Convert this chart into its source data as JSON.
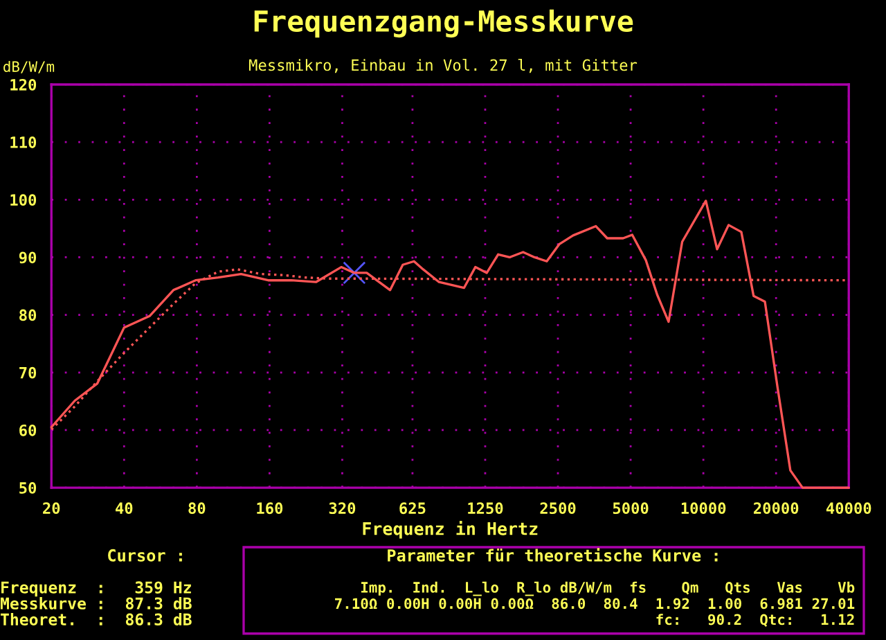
{
  "chart_data": {
    "type": "line",
    "title": "Frequenzgang-Messkurve",
    "subtitle": "Messmikro, Einbau in Vol. 27 l, mit Gitter",
    "xlabel": "Frequenz in Hertz",
    "ylabel": "dB/W/m",
    "log": "x",
    "xlim": [
      20,
      40000
    ],
    "xticks": [
      20,
      40,
      80,
      160,
      320,
      625,
      1250,
      2500,
      5000,
      10000,
      20000,
      40000
    ],
    "ylim": [
      50,
      120
    ],
    "yticks": [
      50,
      60,
      70,
      80,
      90,
      100,
      110,
      120
    ],
    "grid": true,
    "legend": false,
    "series": [
      {
        "line_style": "solid",
        "marker": "none",
        "color": "#ff5555",
        "x": [
          20,
          25,
          31,
          40,
          51,
          64,
          79,
          98,
          122,
          158,
          197,
          249,
          317,
          359,
          404,
          505,
          570,
          634,
          692,
          805,
          1022,
          1138,
          1269,
          1414,
          1576,
          1794,
          2000,
          2248,
          2537,
          2890,
          3590,
          4000,
          4654,
          5076,
          5780,
          6440,
          7180,
          8174,
          10240,
          11400,
          12720,
          14360,
          16140,
          17980,
          20300,
          22920,
          25740,
          40000
        ],
        "values": [
          60.5,
          65.1,
          68.1,
          77.8,
          79.8,
          84.3,
          86.0,
          86.5,
          87.1,
          86.0,
          86.0,
          85.7,
          88.3,
          87.3,
          87.3,
          84.3,
          88.7,
          89.3,
          87.9,
          85.7,
          84.7,
          88.3,
          87.3,
          90.5,
          90.0,
          90.9,
          90.0,
          89.3,
          92.3,
          93.8,
          95.4,
          93.3,
          93.3,
          93.9,
          89.5,
          83.5,
          78.8,
          92.7,
          99.8,
          91.4,
          95.6,
          94.4,
          83.3,
          82.3,
          67.3,
          53.0,
          50,
          50
        ]
      },
      {
        "line_style": "dotted",
        "marker": "none",
        "color": "#ff5555",
        "x": [
          20,
          25,
          31,
          40,
          51,
          64,
          79,
          98,
          118,
          147,
          183,
          224,
          275,
          359,
          40000
        ],
        "values": [
          60.1,
          64.1,
          68.5,
          73.4,
          77.8,
          81.9,
          85.5,
          87.5,
          87.9,
          87.1,
          86.9,
          86.5,
          86.3,
          86.3,
          86.0
        ]
      },
      {
        "type": "scatter",
        "marker": "cross",
        "color": "#5555ff",
        "x": [
          359
        ],
        "values": [
          87.3
        ]
      }
    ],
    "annotations": [
      "Cursor :",
      "Frequenz  :   359 Hz",
      "Messkurve :  87.3 dB",
      "Theoret.  :  86.3 dB",
      "Parameter für theoretische Kurve :",
      "Imp.  Ind.  L_lo  R_lo dB/W/m  fs    Qm   Qts   Vas    Vb",
      "7.10Ω 0.00H 0.00H 0.00Ω  86.0  80.4  1.92  1.00  6.981 27.01",
      "fc:   90.2  Qtc:   1.12"
    ]
  }
}
